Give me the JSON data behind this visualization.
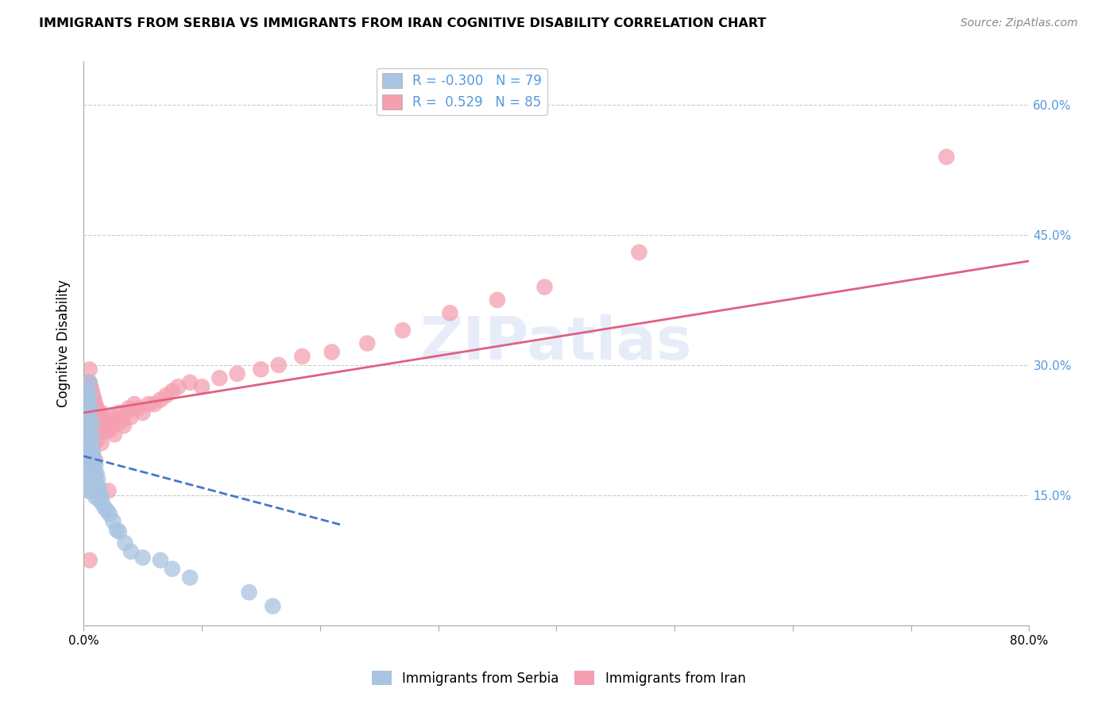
{
  "title": "IMMIGRANTS FROM SERBIA VS IMMIGRANTS FROM IRAN COGNITIVE DISABILITY CORRELATION CHART",
  "source": "Source: ZipAtlas.com",
  "ylabel": "Cognitive Disability",
  "x_min": 0.0,
  "x_max": 0.8,
  "y_min": 0.0,
  "y_max": 0.65,
  "x_ticks": [
    0.0,
    0.1,
    0.2,
    0.3,
    0.4,
    0.5,
    0.6,
    0.7,
    0.8
  ],
  "x_tick_labels": [
    "0.0%",
    "",
    "",
    "",
    "",
    "",
    "",
    "",
    "80.0%"
  ],
  "y_ticks": [
    0.0,
    0.15,
    0.3,
    0.45,
    0.6
  ],
  "y_tick_labels": [
    "",
    "15.0%",
    "30.0%",
    "45.0%",
    "60.0%"
  ],
  "serbia_R": -0.3,
  "serbia_N": 79,
  "iran_R": 0.529,
  "iran_N": 85,
  "serbia_color": "#a8c4e0",
  "iran_color": "#f4a0b0",
  "serbia_line_color": "#4477cc",
  "iran_line_color": "#e06080",
  "watermark": "ZIPatlas",
  "background_color": "#ffffff",
  "grid_color": "#cccccc",
  "right_tick_color": "#5599dd",
  "iran_trend_x0": 0.0,
  "iran_trend_y0": 0.245,
  "iran_trend_x1": 0.8,
  "iran_trend_y1": 0.42,
  "serbia_trend_x0": 0.0,
  "serbia_trend_y0": 0.195,
  "serbia_trend_x1": 0.22,
  "serbia_trend_y1": 0.115,
  "serbia_scatter_x": [
    0.002,
    0.002,
    0.003,
    0.003,
    0.003,
    0.003,
    0.003,
    0.003,
    0.003,
    0.003,
    0.003,
    0.004,
    0.004,
    0.004,
    0.004,
    0.004,
    0.004,
    0.004,
    0.004,
    0.004,
    0.004,
    0.005,
    0.005,
    0.005,
    0.005,
    0.005,
    0.005,
    0.005,
    0.005,
    0.005,
    0.005,
    0.005,
    0.005,
    0.006,
    0.006,
    0.006,
    0.006,
    0.006,
    0.006,
    0.006,
    0.007,
    0.007,
    0.007,
    0.007,
    0.007,
    0.008,
    0.008,
    0.008,
    0.008,
    0.009,
    0.009,
    0.009,
    0.01,
    0.01,
    0.01,
    0.01,
    0.011,
    0.011,
    0.012,
    0.012,
    0.013,
    0.013,
    0.014,
    0.015,
    0.016,
    0.018,
    0.02,
    0.022,
    0.025,
    0.028,
    0.03,
    0.035,
    0.04,
    0.05,
    0.065,
    0.075,
    0.09,
    0.14,
    0.16
  ],
  "serbia_scatter_y": [
    0.2,
    0.27,
    0.23,
    0.215,
    0.205,
    0.195,
    0.19,
    0.185,
    0.18,
    0.175,
    0.17,
    0.26,
    0.24,
    0.225,
    0.21,
    0.2,
    0.19,
    0.18,
    0.175,
    0.165,
    0.155,
    0.28,
    0.265,
    0.25,
    0.235,
    0.22,
    0.205,
    0.195,
    0.185,
    0.178,
    0.17,
    0.162,
    0.155,
    0.25,
    0.235,
    0.22,
    0.205,
    0.19,
    0.178,
    0.165,
    0.23,
    0.215,
    0.2,
    0.185,
    0.17,
    0.2,
    0.188,
    0.175,
    0.16,
    0.19,
    0.178,
    0.165,
    0.185,
    0.172,
    0.16,
    0.148,
    0.175,
    0.162,
    0.168,
    0.155,
    0.158,
    0.145,
    0.152,
    0.148,
    0.14,
    0.135,
    0.132,
    0.128,
    0.12,
    0.11,
    0.108,
    0.095,
    0.085,
    0.078,
    0.075,
    0.065,
    0.055,
    0.038,
    0.022
  ],
  "iran_scatter_x": [
    0.002,
    0.002,
    0.003,
    0.003,
    0.003,
    0.003,
    0.004,
    0.004,
    0.004,
    0.004,
    0.004,
    0.005,
    0.005,
    0.005,
    0.005,
    0.005,
    0.005,
    0.005,
    0.006,
    0.006,
    0.006,
    0.006,
    0.007,
    0.007,
    0.007,
    0.007,
    0.008,
    0.008,
    0.008,
    0.008,
    0.009,
    0.009,
    0.009,
    0.01,
    0.01,
    0.01,
    0.011,
    0.011,
    0.012,
    0.012,
    0.013,
    0.014,
    0.015,
    0.015,
    0.016,
    0.017,
    0.018,
    0.019,
    0.02,
    0.021,
    0.022,
    0.024,
    0.025,
    0.026,
    0.028,
    0.03,
    0.032,
    0.034,
    0.036,
    0.038,
    0.04,
    0.043,
    0.046,
    0.05,
    0.055,
    0.06,
    0.065,
    0.07,
    0.075,
    0.08,
    0.09,
    0.1,
    0.115,
    0.13,
    0.15,
    0.165,
    0.185,
    0.21,
    0.24,
    0.27,
    0.31,
    0.35,
    0.39,
    0.47,
    0.73
  ],
  "iran_scatter_y": [
    0.28,
    0.25,
    0.27,
    0.255,
    0.235,
    0.215,
    0.28,
    0.265,
    0.25,
    0.235,
    0.195,
    0.295,
    0.28,
    0.265,
    0.25,
    0.235,
    0.22,
    0.075,
    0.275,
    0.26,
    0.245,
    0.215,
    0.27,
    0.255,
    0.235,
    0.215,
    0.265,
    0.25,
    0.23,
    0.195,
    0.26,
    0.24,
    0.21,
    0.255,
    0.235,
    0.19,
    0.25,
    0.22,
    0.245,
    0.215,
    0.24,
    0.235,
    0.245,
    0.21,
    0.24,
    0.23,
    0.235,
    0.225,
    0.235,
    0.155,
    0.225,
    0.23,
    0.24,
    0.22,
    0.235,
    0.245,
    0.235,
    0.23,
    0.245,
    0.25,
    0.24,
    0.255,
    0.25,
    0.245,
    0.255,
    0.255,
    0.26,
    0.265,
    0.27,
    0.275,
    0.28,
    0.275,
    0.285,
    0.29,
    0.295,
    0.3,
    0.31,
    0.315,
    0.325,
    0.34,
    0.36,
    0.375,
    0.39,
    0.43,
    0.54
  ]
}
